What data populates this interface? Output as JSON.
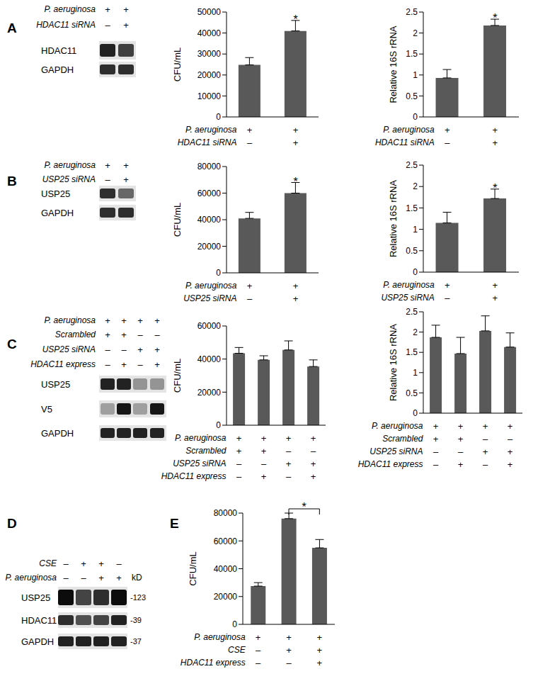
{
  "panel_labels": [
    "A",
    "B",
    "C",
    "D",
    "E"
  ],
  "chart_data": [
    {
      "type": "bar",
      "ylabel": "CFU/mL",
      "categories": [
        null,
        null
      ],
      "values": [
        24800,
        41000
      ],
      "errors": [
        3500,
        5000
      ],
      "color": "#595959",
      "ylim": [
        0,
        50000
      ],
      "yticks": [
        0,
        10000,
        20000,
        30000,
        40000,
        50000
      ],
      "annotations": [
        {
          "text": "*",
          "index": 1
        }
      ],
      "conditions": [
        {
          "label": "P. aeruginosa",
          "signs": [
            "+",
            "+"
          ]
        },
        {
          "label": "HDAC11 siRNA",
          "signs": [
            "–",
            "+"
          ]
        }
      ]
    },
    {
      "type": "bar",
      "ylabel": "Relative 16S rRNA",
      "categories": [
        null,
        null
      ],
      "values": [
        0.93,
        2.18
      ],
      "errors": [
        0.2,
        0.15
      ],
      "color": "#595959",
      "ylim": [
        0,
        2.5
      ],
      "yticks": [
        0,
        0.5,
        1,
        1.5,
        2,
        2.5
      ],
      "annotations": [
        {
          "text": "*",
          "index": 1
        }
      ],
      "conditions": [
        {
          "label": "P. aeruginosa",
          "signs": [
            "+",
            "+"
          ]
        },
        {
          "label": "HDAC11 siRNA",
          "signs": [
            "–",
            "+"
          ]
        }
      ]
    },
    {
      "type": "bar",
      "ylabel": "CFU/mL",
      "categories": [
        null,
        null
      ],
      "values": [
        41000,
        60000
      ],
      "errors": [
        4500,
        8000
      ],
      "color": "#595959",
      "ylim": [
        0,
        80000
      ],
      "yticks": [
        0,
        20000,
        40000,
        60000,
        80000
      ],
      "annotations": [
        {
          "text": "*",
          "index": 1
        }
      ],
      "conditions": [
        {
          "label": "P. aeruginosa",
          "signs": [
            "+",
            "+"
          ]
        },
        {
          "label": "USP25 siRNA",
          "signs": [
            "–",
            "+"
          ]
        }
      ]
    },
    {
      "type": "bar",
      "ylabel": "Relative 16S rRNA",
      "categories": [
        null,
        null
      ],
      "values": [
        1.15,
        1.72
      ],
      "errors": [
        0.25,
        0.22
      ],
      "color": "#595959",
      "ylim": [
        0,
        2.5
      ],
      "yticks": [
        0,
        0.5,
        1,
        1.5,
        2,
        2.5
      ],
      "annotations": [
        {
          "text": "*",
          "index": 1
        }
      ],
      "conditions": [
        {
          "label": "P. aeruginosa",
          "signs": [
            "+",
            "+"
          ]
        },
        {
          "label": "USP25 siRNA",
          "signs": [
            "–",
            "+"
          ]
        }
      ]
    },
    {
      "type": "bar",
      "ylabel": "CFU/mL",
      "categories": [
        null,
        null,
        null,
        null
      ],
      "values": [
        43500,
        39500,
        45500,
        35500
      ],
      "errors": [
        3500,
        2500,
        5500,
        4000
      ],
      "color": "#595959",
      "ylim": [
        0,
        60000
      ],
      "yticks": [
        0,
        20000,
        40000,
        60000
      ],
      "conditions": [
        {
          "label": "P. aeruginosa",
          "signs": [
            "+",
            "+",
            "+",
            "+"
          ]
        },
        {
          "label": "Scrambled",
          "signs": [
            "+",
            "+",
            "–",
            "–"
          ]
        },
        {
          "label": "USP25 siRNA",
          "signs": [
            "–",
            "–",
            "+",
            "+"
          ]
        },
        {
          "label": "HDAC11 express",
          "signs": [
            "–",
            "+",
            "–",
            "+"
          ]
        }
      ]
    },
    {
      "type": "bar",
      "ylabel": "Relative 16S rRNA",
      "categories": [
        null,
        null,
        null,
        null
      ],
      "values": [
        1.87,
        1.47,
        2.03,
        1.63
      ],
      "errors": [
        0.3,
        0.4,
        0.37,
        0.35
      ],
      "color": "#595959",
      "ylim": [
        0,
        2.5
      ],
      "yticks": [
        0,
        0.5,
        1,
        1.5,
        2,
        2.5
      ],
      "conditions": [
        {
          "label": "P. aeruginosa",
          "signs": [
            "+",
            "+",
            "+",
            "+"
          ]
        },
        {
          "label": "Scrambled",
          "signs": [
            "+",
            "+",
            "–",
            "–"
          ]
        },
        {
          "label": "USP25 siRNA",
          "signs": [
            "–",
            "–",
            "+",
            "+"
          ]
        },
        {
          "label": "HDAC11 express",
          "signs": [
            "–",
            "+",
            "–",
            "+"
          ]
        }
      ]
    },
    {
      "type": "bar",
      "ylabel": "CFU/mL",
      "categories": [
        null,
        null,
        null
      ],
      "values": [
        27500,
        76000,
        55000
      ],
      "errors": [
        2500,
        4000,
        6000
      ],
      "color": "#595959",
      "ylim": [
        0,
        80000
      ],
      "yticks": [
        0,
        20000,
        40000,
        60000,
        80000
      ],
      "annotations": [
        {
          "text": "*",
          "between": [
            1,
            2
          ]
        }
      ],
      "conditions": [
        {
          "label": "P. aeruginosa",
          "signs": [
            "+",
            "+",
            "+"
          ]
        },
        {
          "label": "CSE",
          "signs": [
            "–",
            "+",
            "+"
          ]
        },
        {
          "label": "HDAC11 express",
          "signs": [
            "–",
            "–",
            "+"
          ]
        }
      ]
    }
  ],
  "blots": [
    {
      "conditions": [
        {
          "label": "P. aeruginosa",
          "signs": [
            "+",
            "+"
          ]
        },
        {
          "label": "HDAC11 siRNA",
          "signs": [
            "–",
            "+"
          ]
        }
      ],
      "rows": [
        {
          "label": "HDAC11",
          "bands": [
            0.85,
            0.72
          ]
        },
        {
          "label": "GAPDH",
          "bands": [
            0.8,
            0.8
          ]
        }
      ]
    },
    {
      "conditions": [
        {
          "label": "P. aeruginosa",
          "signs": [
            "+",
            "+"
          ]
        },
        {
          "label": "USP25 siRNA",
          "signs": [
            "–",
            "+"
          ]
        }
      ],
      "rows": [
        {
          "label": "USP25",
          "bands": [
            0.8,
            0.55
          ]
        },
        {
          "label": "GAPDH",
          "bands": [
            0.8,
            0.8
          ]
        }
      ]
    },
    {
      "conditions": [
        {
          "label": "P. aeruginosa",
          "signs": [
            "+",
            "+",
            "+",
            "+"
          ]
        },
        {
          "label": "Scrambled",
          "signs": [
            "+",
            "+",
            "–",
            "–"
          ]
        },
        {
          "label": "USP25 siRNA",
          "signs": [
            "–",
            "–",
            "+",
            "+"
          ]
        },
        {
          "label": "HDAC11 express",
          "signs": [
            "–",
            "+",
            "–",
            "+"
          ]
        }
      ],
      "rows": [
        {
          "label": "USP25",
          "bands": [
            0.85,
            0.85,
            0.35,
            0.35
          ]
        },
        {
          "label": "V5",
          "bands": [
            0.3,
            0.9,
            0.3,
            0.9
          ]
        },
        {
          "label": "GAPDH",
          "bands": [
            0.85,
            0.85,
            0.85,
            0.85
          ]
        }
      ]
    },
    {
      "unit": "kD",
      "conditions": [
        {
          "label": "CSE",
          "signs": [
            "–",
            "+",
            "+",
            "–"
          ]
        },
        {
          "label": "P. aeruginosa",
          "signs": [
            "–",
            "–",
            "+",
            "+"
          ]
        }
      ],
      "rows": [
        {
          "label": "USP25",
          "bands": [
            0.95,
            0.7,
            0.8,
            0.95
          ],
          "mw": "-123"
        },
        {
          "label": "HDAC11",
          "bands": [
            0.8,
            0.65,
            0.7,
            0.85
          ],
          "mw": "-39"
        },
        {
          "label": "GAPDH",
          "bands": [
            0.85,
            0.85,
            0.85,
            0.85
          ],
          "mw": "-37"
        }
      ]
    }
  ]
}
